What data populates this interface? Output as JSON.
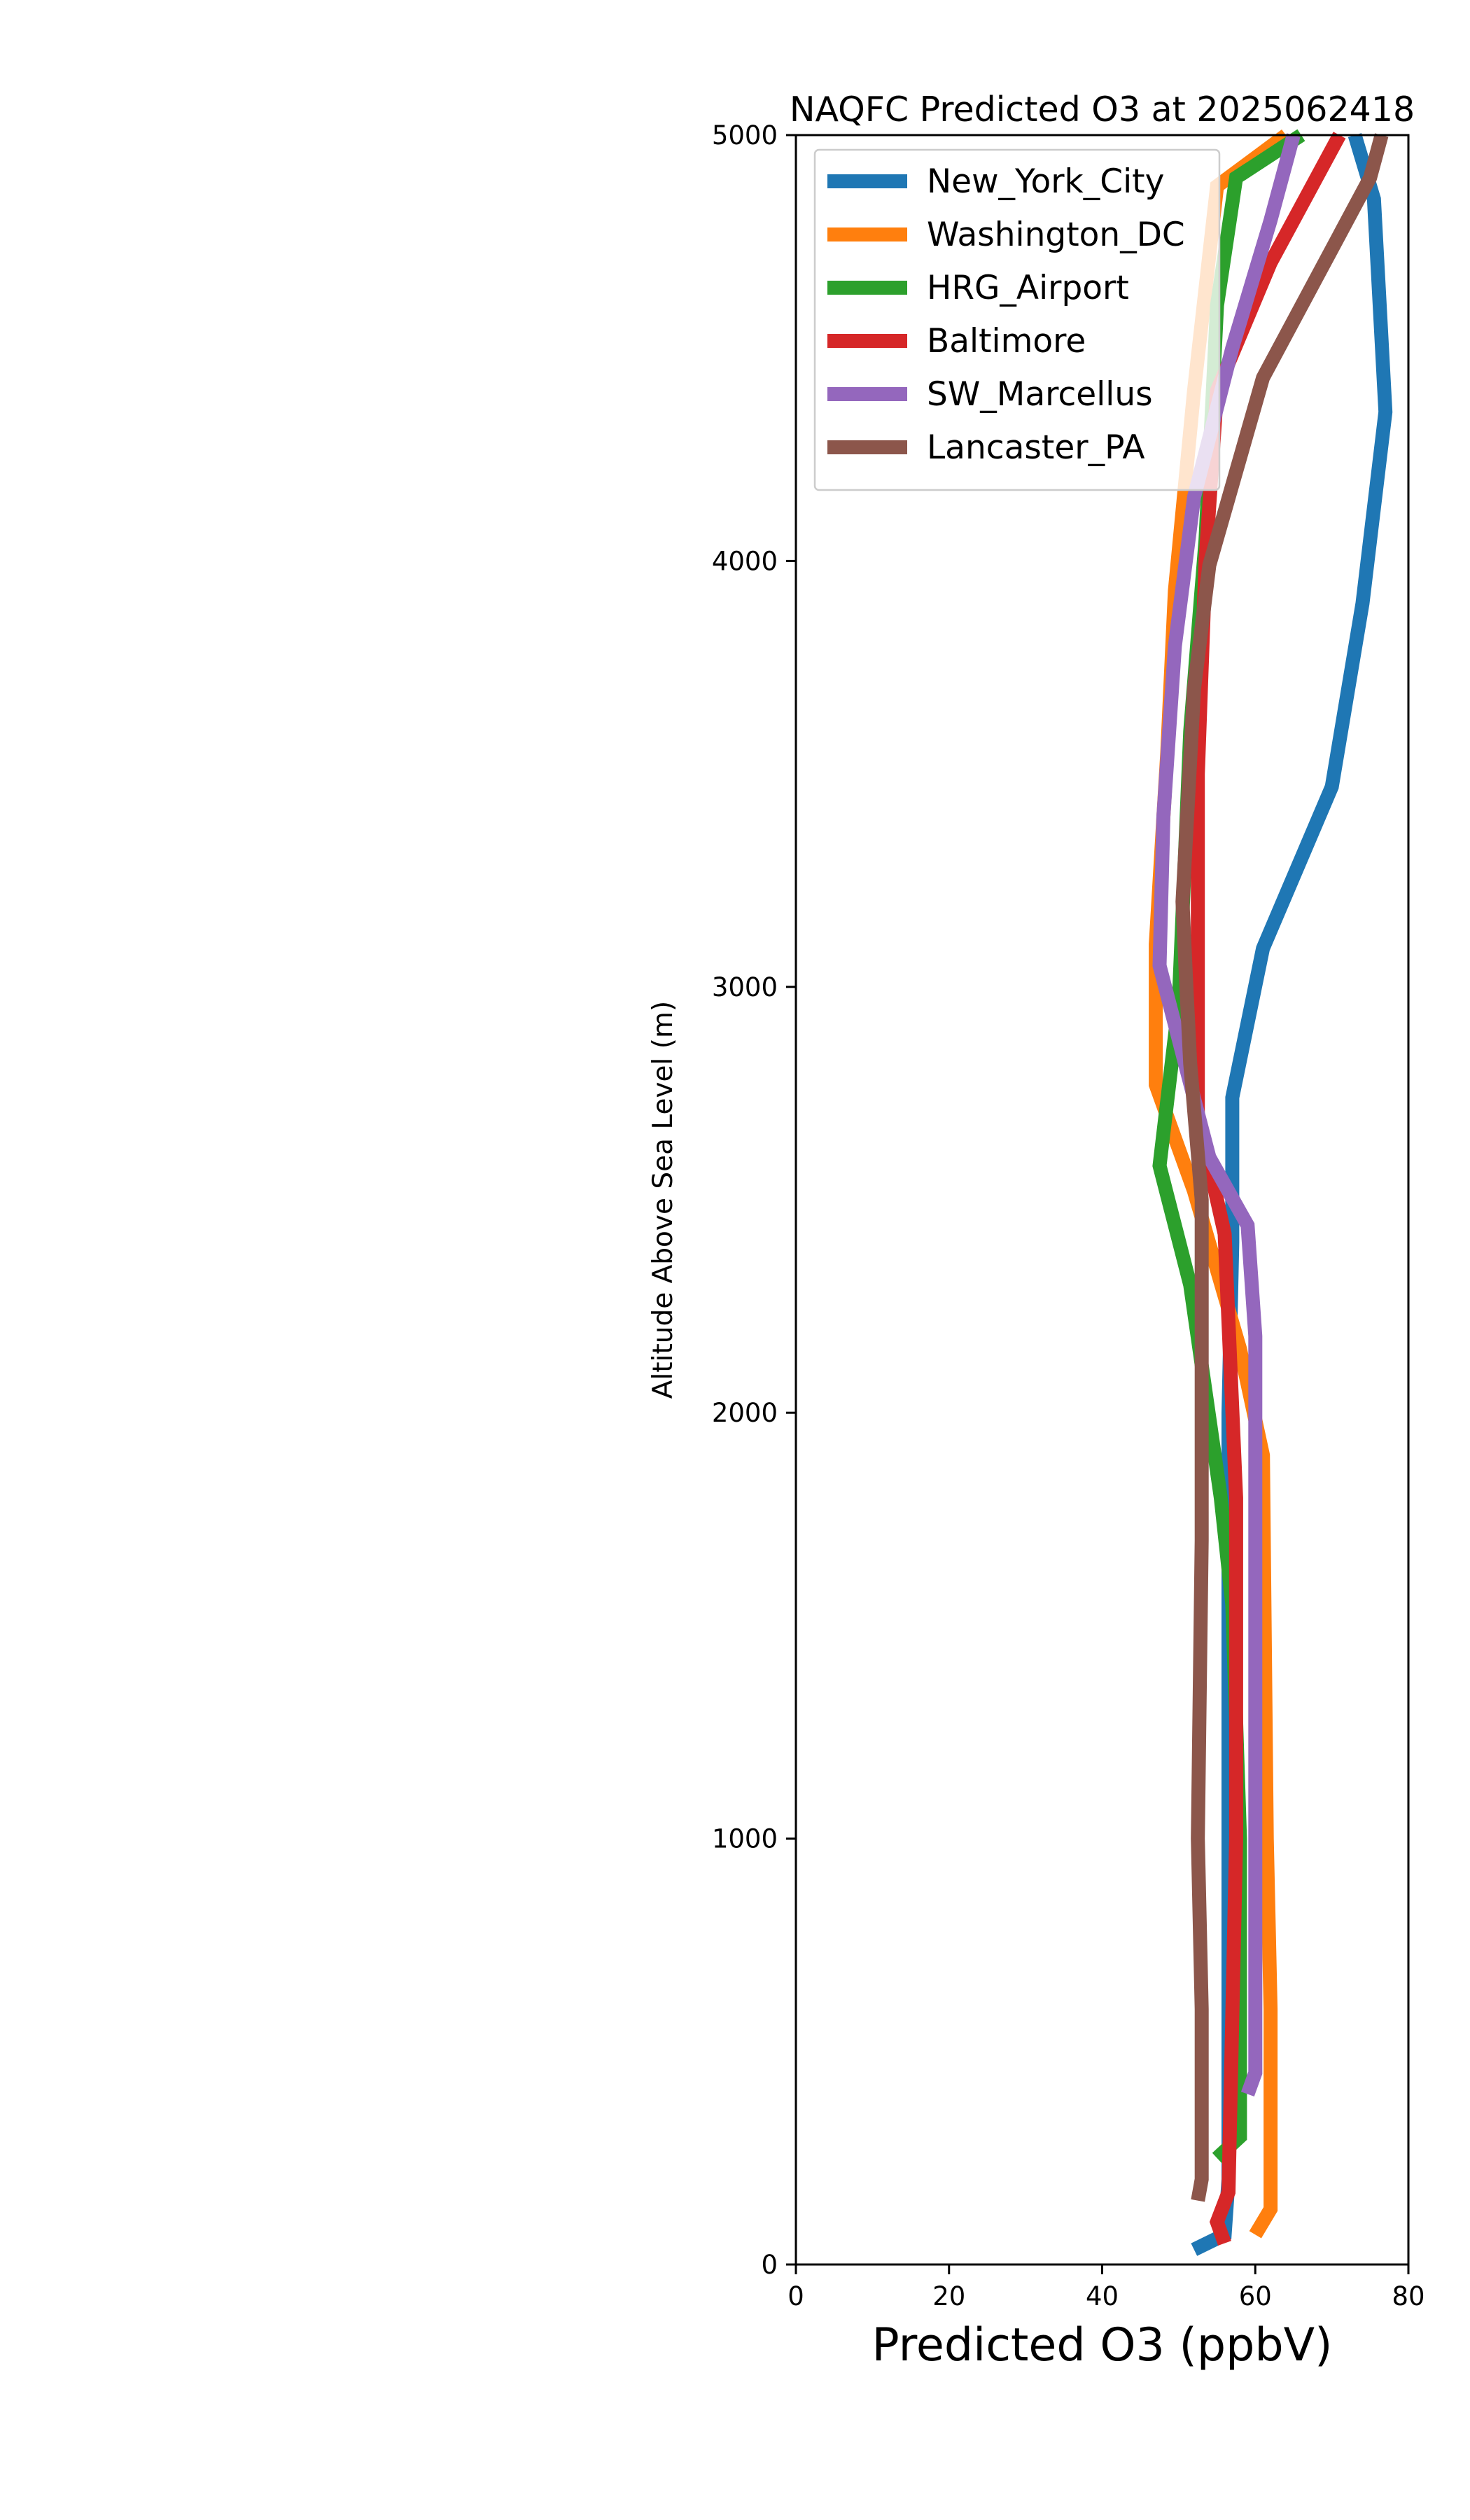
{
  "chart_data": {
    "type": "line",
    "title": "NAQFC Predicted O3 at 2025062418",
    "xlabel": "Predicted O3 (ppbV)",
    "ylabel": "Altitude Above Sea Level (m)",
    "xlim": [
      0,
      80
    ],
    "ylim": [
      0,
      5000
    ],
    "xticks": [
      0,
      20,
      40,
      60,
      80
    ],
    "yticks": [
      0,
      1000,
      2000,
      3000,
      4000,
      5000
    ],
    "grid": false,
    "legend_position": "top-left",
    "series": [
      {
        "name": "New_York_City",
        "color": "#1f77b4",
        "points": [
          [
            52,
            35
          ],
          [
            56,
            70
          ],
          [
            56.5,
            200
          ],
          [
            56.5,
            1000
          ],
          [
            56.5,
            2000
          ],
          [
            57,
            2400
          ],
          [
            57,
            2740
          ],
          [
            61,
            3090
          ],
          [
            70,
            3470
          ],
          [
            74,
            3900
          ],
          [
            77,
            4350
          ],
          [
            75.5,
            4850
          ],
          [
            73,
            5000
          ]
        ]
      },
      {
        "name": "Washington_DC",
        "color": "#ff7f0e",
        "points": [
          [
            60,
            70
          ],
          [
            62,
            130
          ],
          [
            62,
            600
          ],
          [
            61.5,
            1000
          ],
          [
            61,
            1900
          ],
          [
            58,
            2150
          ],
          [
            52,
            2520
          ],
          [
            47,
            2770
          ],
          [
            47,
            3100
          ],
          [
            48.5,
            3550
          ],
          [
            49.5,
            3930
          ],
          [
            52,
            4400
          ],
          [
            55,
            4880
          ],
          [
            64,
            5000
          ]
        ]
      },
      {
        "name": "HRG_Airport",
        "color": "#2ca02c",
        "points": [
          [
            55,
            250
          ],
          [
            58,
            300
          ],
          [
            58,
            1000
          ],
          [
            57,
            1550
          ],
          [
            55.5,
            1800
          ],
          [
            51.5,
            2300
          ],
          [
            47.5,
            2580
          ],
          [
            50,
            2960
          ],
          [
            51.5,
            3600
          ],
          [
            53.5,
            4050
          ],
          [
            55,
            4600
          ],
          [
            57.5,
            4900
          ],
          [
            66,
            5000
          ]
        ]
      },
      {
        "name": "Baltimore",
        "color": "#d62728",
        "points": [
          [
            56,
            50
          ],
          [
            55,
            100
          ],
          [
            56.5,
            170
          ],
          [
            57.5,
            1000
          ],
          [
            57.5,
            1800
          ],
          [
            56,
            2420
          ],
          [
            52.5,
            2700
          ],
          [
            52.5,
            3500
          ],
          [
            53.5,
            4000
          ],
          [
            55,
            4400
          ],
          [
            62,
            4700
          ],
          [
            71,
            5000
          ]
        ]
      },
      {
        "name": "SW_Marcellus",
        "color": "#9467bd",
        "points": [
          [
            59,
            400
          ],
          [
            60,
            450
          ],
          [
            60,
            1000
          ],
          [
            60,
            2180
          ],
          [
            59,
            2440
          ],
          [
            54,
            2600
          ],
          [
            47.5,
            3050
          ],
          [
            48,
            3400
          ],
          [
            49.5,
            3800
          ],
          [
            52,
            4150
          ],
          [
            57,
            4500
          ],
          [
            62,
            4800
          ],
          [
            65,
            5000
          ]
        ]
      },
      {
        "name": "Lancaster_PA",
        "color": "#8c564b",
        "points": [
          [
            52.5,
            150
          ],
          [
            53,
            200
          ],
          [
            53,
            600
          ],
          [
            52.5,
            1000
          ],
          [
            53,
            1700
          ],
          [
            53,
            2500
          ],
          [
            51.5,
            2820
          ],
          [
            51,
            3000
          ],
          [
            50.5,
            3200
          ],
          [
            52,
            3700
          ],
          [
            54,
            3990
          ],
          [
            61,
            4430
          ],
          [
            75,
            4900
          ],
          [
            76.5,
            5000
          ]
        ]
      }
    ]
  }
}
